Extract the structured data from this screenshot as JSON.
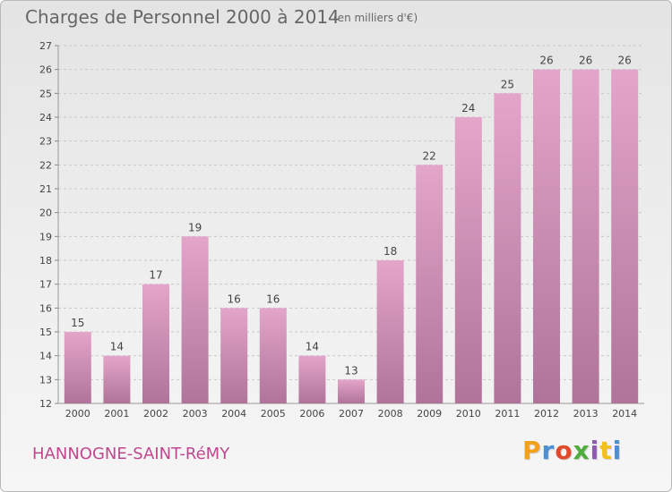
{
  "chart_data": {
    "type": "bar",
    "title": "Charges de Personnel 2000 à 2014",
    "subtitle": "(en milliers d'€)",
    "categories": [
      "2000",
      "2001",
      "2002",
      "2003",
      "2004",
      "2005",
      "2006",
      "2007",
      "2008",
      "2009",
      "2010",
      "2011",
      "2012",
      "2013",
      "2014"
    ],
    "values": [
      15,
      14,
      17,
      19,
      16,
      16,
      14,
      13,
      18,
      22,
      24,
      25,
      26,
      26,
      26
    ],
    "ylim": [
      12,
      27
    ],
    "yticks": [
      12,
      13,
      14,
      15,
      16,
      17,
      18,
      19,
      20,
      21,
      22,
      23,
      24,
      25,
      26,
      27
    ],
    "grid": true,
    "bar_color_top": "#e3a5c9",
    "bar_color_bottom": "#b0739a",
    "data_labels": true
  },
  "footer": {
    "commune": "HANNOGNE-SAINT-RéMY",
    "logo_text": "Proxiti",
    "logo_colors": [
      "#f2a21a",
      "#4d8fd1",
      "#e04a2a",
      "#4fae3b",
      "#8f5bb0",
      "#f2c018",
      "#4d8fd1"
    ]
  },
  "colors": {
    "accent": "#c0478e",
    "text": "#666666"
  }
}
